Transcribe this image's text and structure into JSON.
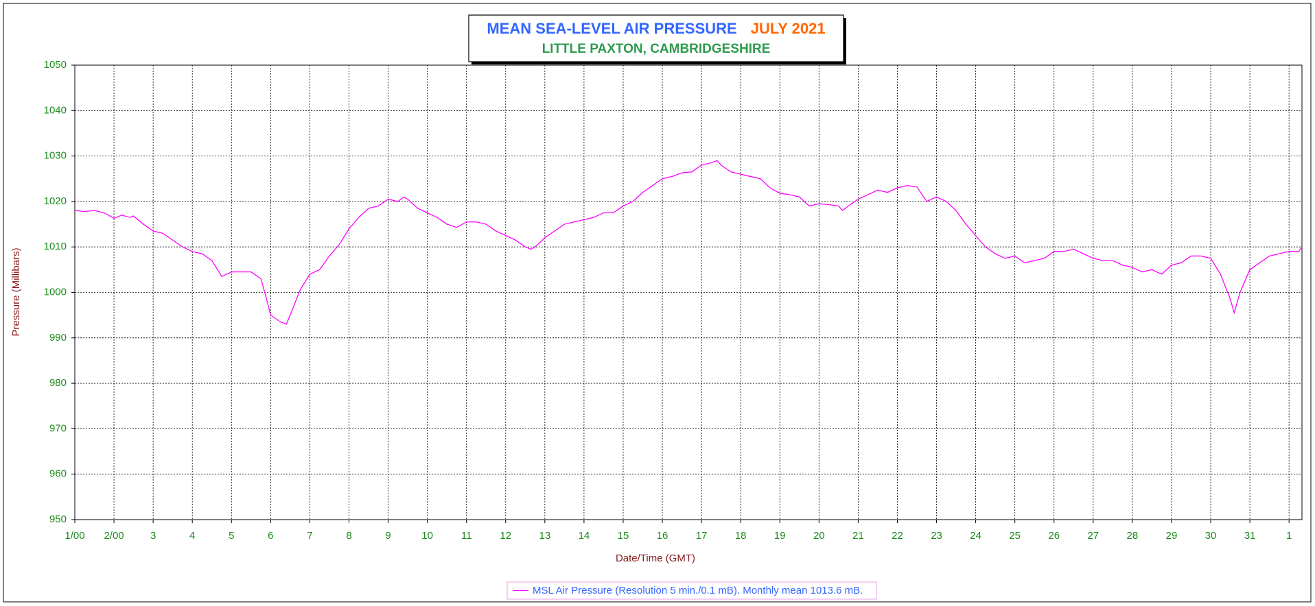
{
  "chart_data": {
    "type": "line",
    "title": "MEAN SEA-LEVEL AIR PRESSURE",
    "title_date": "JULY 2021",
    "subtitle": "LITTLE PAXTON, CAMBRIDGESHIRE",
    "x_label": "Date/Time (GMT)",
    "y_label": "Pressure (Millibars)",
    "x": [
      1,
      1.25,
      1.5,
      1.75,
      2,
      2.2,
      2.4,
      2.5,
      2.75,
      3,
      3.25,
      3.5,
      3.75,
      4,
      4.25,
      4.5,
      4.75,
      5,
      5.25,
      5.5,
      5.75,
      5.85,
      6,
      6.25,
      6.4,
      6.5,
      6.75,
      7,
      7.25,
      7.5,
      7.75,
      8,
      8.25,
      8.5,
      8.75,
      9,
      9.25,
      9.4,
      9.5,
      9.75,
      10,
      10.25,
      10.5,
      10.75,
      11,
      11.25,
      11.5,
      11.75,
      12,
      12.25,
      12.5,
      12.65,
      12.75,
      13,
      13.25,
      13.5,
      13.75,
      14,
      14.25,
      14.5,
      14.75,
      15,
      15.25,
      15.5,
      15.75,
      16,
      16.25,
      16.5,
      16.75,
      17,
      17.25,
      17.4,
      17.5,
      17.75,
      18,
      18.25,
      18.5,
      18.75,
      19,
      19.25,
      19.5,
      19.75,
      20,
      20.25,
      20.5,
      20.6,
      20.75,
      21,
      21.25,
      21.5,
      21.75,
      22,
      22.25,
      22.5,
      22.75,
      23,
      23.25,
      23.5,
      23.75,
      24,
      24.25,
      24.5,
      24.75,
      25,
      25.25,
      25.5,
      25.75,
      26,
      26.25,
      26.5,
      26.75,
      27,
      27.25,
      27.5,
      27.75,
      28,
      28.25,
      28.5,
      28.75,
      29,
      29.25,
      29.5,
      29.75,
      30,
      30.25,
      30.5,
      30.6,
      30.75,
      31,
      31.25,
      31.5,
      31.75,
      32,
      32.25,
      32.33
    ],
    "series": [
      {
        "name": "MSL Air Pressure (Resolution 5 min./0.1 mB). Monthly mean 1013.6 mB.",
        "color": "#ff00ff",
        "values": [
          1018,
          1017.8,
          1018,
          1017.5,
          1016.3,
          1017,
          1016.5,
          1016.8,
          1015,
          1013.5,
          1013,
          1011.5,
          1010,
          1009,
          1008.5,
          1007,
          1003.5,
          1004.5,
          1004.5,
          1004.5,
          1003,
          1000,
          995,
          993.5,
          993,
          995,
          1000.5,
          1004,
          1005,
          1008,
          1010.5,
          1014,
          1016.5,
          1018.5,
          1019,
          1020.5,
          1020,
          1021,
          1020.5,
          1018.5,
          1017.5,
          1016.5,
          1015,
          1014.3,
          1015.5,
          1015.5,
          1015,
          1013.5,
          1012.5,
          1011.5,
          1010,
          1009.5,
          1010,
          1012,
          1013.5,
          1015,
          1015.5,
          1016,
          1016.5,
          1017.5,
          1017.5,
          1019,
          1020,
          1022,
          1023.5,
          1025,
          1025.5,
          1026.3,
          1026.5,
          1028,
          1028.5,
          1029,
          1028,
          1026.5,
          1026,
          1025.5,
          1025,
          1023,
          1021.8,
          1021.5,
          1021,
          1019,
          1019.5,
          1019.3,
          1019,
          1018,
          1019,
          1020.5,
          1021.5,
          1022.5,
          1022,
          1023,
          1023.5,
          1023.2,
          1020,
          1021,
          1020,
          1018,
          1015,
          1012.5,
          1010,
          1008.5,
          1007.5,
          1008,
          1006.5,
          1007,
          1007.5,
          1009,
          1009,
          1009.5,
          1008.5,
          1007.5,
          1007,
          1007,
          1006,
          1005.5,
          1004.5,
          1005,
          1004,
          1006,
          1006.5,
          1008,
          1008,
          1007.5,
          1004,
          998.5,
          995.5,
          1000,
          1005,
          1006.5,
          1008,
          1008.5,
          1009,
          1009,
          1010
        ]
      }
    ],
    "xlim": [
      1,
      32.33
    ],
    "xticks": [
      {
        "value": 1,
        "label": "1/00"
      },
      {
        "value": 2,
        "label": "2/00"
      },
      3,
      4,
      5,
      6,
      7,
      8,
      9,
      10,
      11,
      12,
      13,
      14,
      15,
      16,
      17,
      18,
      19,
      20,
      21,
      22,
      23,
      24,
      25,
      26,
      27,
      28,
      29,
      30,
      31,
      {
        "value": 32,
        "label": "1"
      }
    ],
    "ylim": [
      950,
      1050
    ],
    "yticks": [
      950,
      960,
      970,
      980,
      990,
      1000,
      1010,
      1020,
      1030,
      1040,
      1050
    ],
    "grid": true,
    "legend": "bottom"
  }
}
